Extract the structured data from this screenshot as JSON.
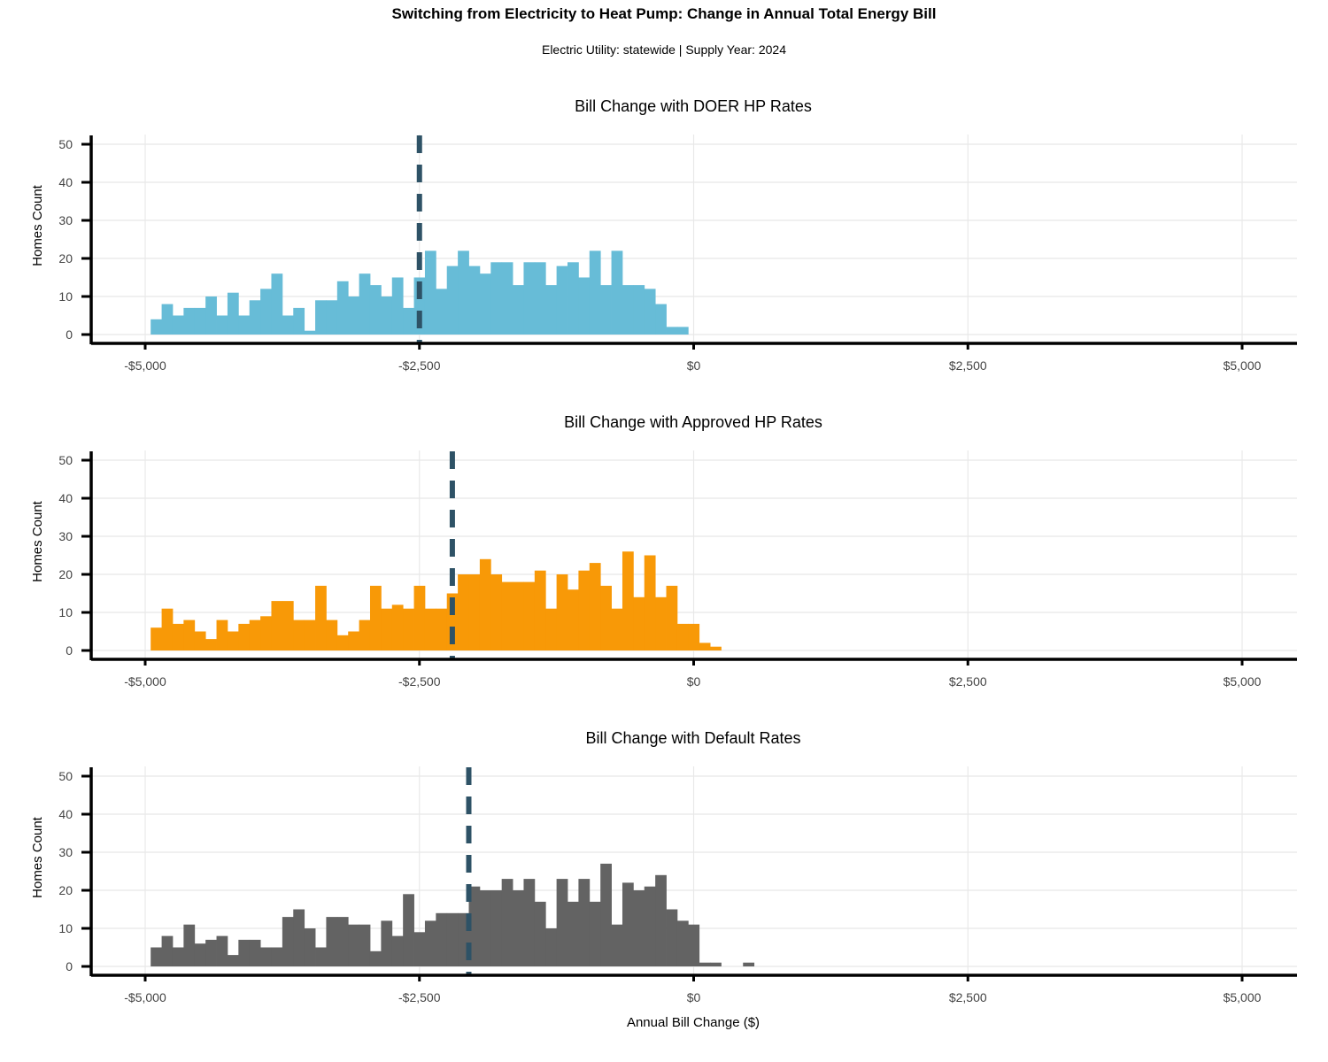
{
  "title": "Switching from Electricity to Heat Pump: Change in Annual Total Energy Bill",
  "subtitle": "Electric Utility: statewide | Supply Year: 2024",
  "colors": {
    "doer": "#67BCD7",
    "approved": "#F89907",
    "default": "#636363",
    "mean_line": "#2E5266",
    "grid": "#E8E8E8",
    "axis": "#000000"
  },
  "chart_data": [
    {
      "type": "bar",
      "title": "Bill Change with DOER HP Rates",
      "xlabel": "",
      "ylabel": "Homes Count",
      "xlim": [
        -5100,
        5100
      ],
      "ylim": [
        0,
        50
      ],
      "bin_width": 100,
      "bin_starts": [
        -5000,
        -4900,
        -4800,
        -4700,
        -4600,
        -4500,
        -4400,
        -4300,
        -4200,
        -4100,
        -4000,
        -3900,
        -3800,
        -3700,
        -3600,
        -3500,
        -3400,
        -3300,
        -3200,
        -3100,
        -3000,
        -2900,
        -2800,
        -2700,
        -2600,
        -2500,
        -2400,
        -2300,
        -2200,
        -2100,
        -2000,
        -1900,
        -1800,
        -1700,
        -1600,
        -1500,
        -1400,
        -1300,
        -1200,
        -1100,
        -1000,
        -900,
        -800,
        -700,
        -600,
        -500,
        -400,
        -300,
        -200,
        -100
      ],
      "values": [
        4,
        8,
        5,
        7,
        7,
        10,
        5,
        11,
        5,
        9,
        12,
        16,
        5,
        7,
        1,
        9,
        9,
        14,
        10,
        16,
        13,
        10,
        15,
        7,
        15,
        22,
        12,
        18,
        22,
        18,
        16,
        19,
        19,
        13,
        19,
        19,
        13,
        18,
        19,
        15,
        22,
        13,
        22,
        13,
        13,
        12,
        8,
        2,
        2,
        0
      ],
      "mean_line": -2500,
      "x_ticks": [
        -5000,
        -2500,
        0,
        2500,
        5000
      ],
      "x_tick_labels": [
        "-$5,000",
        "-$2,500",
        "$0",
        "$2,500",
        "$5,000"
      ],
      "y_ticks": [
        0,
        10,
        20,
        30,
        40,
        50
      ],
      "y_tick_labels": [
        "0",
        "10",
        "20",
        "30",
        "40",
        "50"
      ]
    },
    {
      "type": "bar",
      "title": "Bill Change with Approved HP Rates",
      "xlabel": "",
      "ylabel": "Homes Count",
      "xlim": [
        -5100,
        5100
      ],
      "ylim": [
        0,
        50
      ],
      "bin_width": 100,
      "bin_starts": [
        -5000,
        -4900,
        -4800,
        -4700,
        -4600,
        -4500,
        -4400,
        -4300,
        -4200,
        -4100,
        -4000,
        -3900,
        -3800,
        -3700,
        -3600,
        -3500,
        -3400,
        -3300,
        -3200,
        -3100,
        -3000,
        -2900,
        -2800,
        -2700,
        -2600,
        -2500,
        -2400,
        -2300,
        -2200,
        -2100,
        -2000,
        -1900,
        -1800,
        -1700,
        -1600,
        -1500,
        -1400,
        -1300,
        -1200,
        -1100,
        -1000,
        -900,
        -800,
        -700,
        -600,
        -500,
        -400,
        -300,
        -200,
        -100,
        0,
        100
      ],
      "values": [
        6,
        11,
        7,
        8,
        5,
        3,
        8,
        5,
        7,
        8,
        9,
        13,
        13,
        8,
        8,
        17,
        8,
        4,
        5,
        8,
        17,
        11,
        12,
        11,
        17,
        11,
        11,
        15,
        20,
        20,
        24,
        20,
        18,
        18,
        18,
        21,
        11,
        20,
        16,
        21,
        23,
        17,
        11,
        26,
        14,
        25,
        14,
        17,
        7,
        7,
        2,
        1
      ],
      "mean_line": -2200,
      "x_ticks": [
        -5000,
        -2500,
        0,
        2500,
        5000
      ],
      "x_tick_labels": [
        "-$5,000",
        "-$2,500",
        "$0",
        "$2,500",
        "$5,000"
      ],
      "y_ticks": [
        0,
        10,
        20,
        30,
        40,
        50
      ],
      "y_tick_labels": [
        "0",
        "10",
        "20",
        "30",
        "40",
        "50"
      ]
    },
    {
      "type": "bar",
      "title": "Bill Change with Default Rates",
      "xlabel": "Annual Bill Change ($)",
      "ylabel": "Homes Count",
      "xlim": [
        -5100,
        5100
      ],
      "ylim": [
        0,
        50
      ],
      "bin_width": 100,
      "bin_starts": [
        -5000,
        -4900,
        -4800,
        -4700,
        -4600,
        -4500,
        -4400,
        -4300,
        -4200,
        -4100,
        -4000,
        -3900,
        -3800,
        -3700,
        -3600,
        -3500,
        -3400,
        -3300,
        -3200,
        -3100,
        -3000,
        -2900,
        -2800,
        -2700,
        -2600,
        -2500,
        -2400,
        -2300,
        -2200,
        -2100,
        -2000,
        -1900,
        -1800,
        -1700,
        -1600,
        -1500,
        -1400,
        -1300,
        -1200,
        -1100,
        -1000,
        -900,
        -800,
        -700,
        -600,
        -500,
        -400,
        -300,
        -200,
        -100,
        0,
        100,
        200,
        300,
        400
      ],
      "values": [
        5,
        8,
        5,
        11,
        6,
        7,
        8,
        3,
        7,
        7,
        5,
        5,
        13,
        15,
        10,
        5,
        13,
        13,
        11,
        11,
        4,
        12,
        8,
        19,
        9,
        12,
        14,
        14,
        14,
        21,
        20,
        20,
        23,
        20,
        23,
        17,
        10,
        23,
        17,
        23,
        17,
        27,
        11,
        22,
        20,
        21,
        24,
        15,
        12,
        11,
        1,
        1,
        0,
        0,
        1
      ],
      "mean_line": -2050,
      "x_ticks": [
        -5000,
        -2500,
        0,
        2500,
        5000
      ],
      "x_tick_labels": [
        "-$5,000",
        "-$2,500",
        "$0",
        "$2,500",
        "$5,000"
      ],
      "y_ticks": [
        0,
        10,
        20,
        30,
        40,
        50
      ],
      "y_tick_labels": [
        "0",
        "10",
        "20",
        "30",
        "40",
        "50"
      ]
    }
  ]
}
